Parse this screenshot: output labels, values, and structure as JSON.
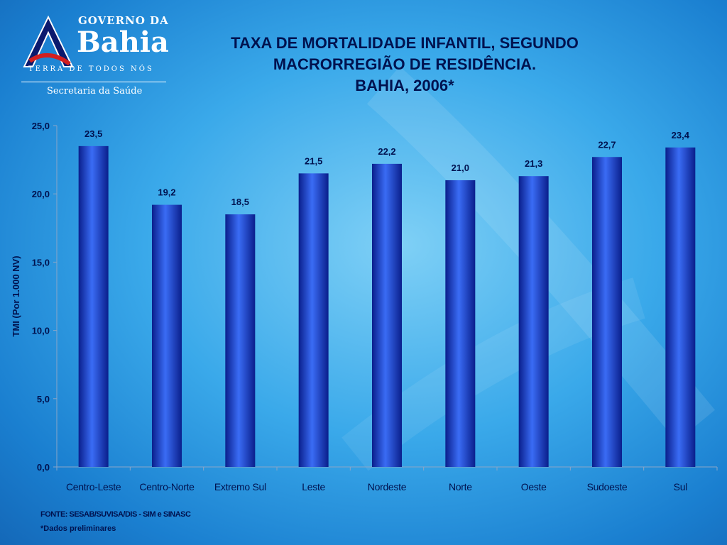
{
  "logo": {
    "line1": "GOVERNO DA",
    "line2": "Bahia",
    "line3": "TERRA DE TODOS NÓS",
    "line4": "Secretaria da Saúde"
  },
  "title_lines": [
    "TAXA DE MORTALIDADE INFANTIL, SEGUNDO",
    "MACRORREGIÃO DE RESIDÊNCIA.",
    "BAHIA, 2006*"
  ],
  "footer": {
    "source": "FONTE: SESAB/SUVISA/DIS - SIM e SINASC",
    "note": "*Dados preliminares"
  },
  "colors": {
    "bar_light": "#3a6cf5",
    "bar_dark": "#0a1f8c",
    "text_dark": "#00124f"
  },
  "chart_data": {
    "type": "bar",
    "title": "TAXA DE MORTALIDADE INFANTIL, SEGUNDO MACRORREGIÃO DE RESIDÊNCIA. BAHIA, 2006*",
    "ylabel": "TMI (Por 1.000 NV)",
    "xlabel": "",
    "categories": [
      "Centro-Leste",
      "Centro-Norte",
      "Extremo Sul",
      "Leste",
      "Nordeste",
      "Norte",
      "Oeste",
      "Sudoeste",
      "Sul"
    ],
    "values": [
      23.5,
      19.2,
      18.5,
      21.5,
      22.2,
      21.0,
      21.3,
      22.7,
      23.4
    ],
    "value_labels": [
      "23,5",
      "19,2",
      "18,5",
      "21,5",
      "22,2",
      "21,0",
      "21,3",
      "22,7",
      "23,4"
    ],
    "ylim": [
      0,
      25
    ],
    "yticks": [
      0,
      5,
      10,
      15,
      20,
      25
    ],
    "ytick_labels": [
      "0,0",
      "5,0",
      "10,0",
      "15,0",
      "20,0",
      "25,0"
    ],
    "grid": false,
    "legend": "none"
  }
}
